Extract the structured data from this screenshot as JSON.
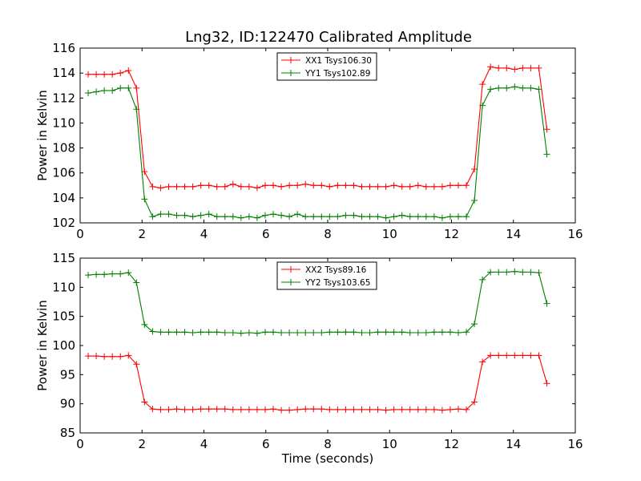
{
  "figure_title": "Lng32, ID:122470 Calibrated Amplitude",
  "colors": {
    "red": "#ff0000",
    "green": "#007f00",
    "axis": "#000000",
    "background": "#ffffff"
  },
  "chart_data": [
    {
      "type": "line",
      "title": "Lng32, ID:122470 Calibrated Amplitude",
      "xlabel": "",
      "ylabel": "Power in Kelvin",
      "xlim": [
        0,
        16
      ],
      "ylim": [
        102,
        116
      ],
      "xticks": [
        "0",
        "2",
        "4",
        "6",
        "8",
        "10",
        "12",
        "14",
        "16"
      ],
      "yticks": [
        "102",
        "104",
        "106",
        "108",
        "110",
        "112",
        "114",
        "116"
      ],
      "grid": false,
      "legend_position": "top-center",
      "x": [
        0.26,
        0.52,
        0.78,
        1.04,
        1.3,
        1.56,
        1.82,
        2.08,
        2.34,
        2.6,
        2.86,
        3.12,
        3.38,
        3.64,
        3.9,
        4.16,
        4.42,
        4.68,
        4.94,
        5.2,
        5.46,
        5.72,
        5.98,
        6.24,
        6.5,
        6.76,
        7.02,
        7.28,
        7.54,
        7.8,
        8.06,
        8.32,
        8.58,
        8.84,
        9.1,
        9.36,
        9.62,
        9.88,
        10.14,
        10.4,
        10.66,
        10.92,
        11.18,
        11.44,
        11.7,
        11.96,
        12.22,
        12.48,
        12.74,
        13.0,
        13.26,
        13.52,
        13.78,
        14.04,
        14.3,
        14.56,
        14.82,
        15.08
      ],
      "series": [
        {
          "name": "XX1 Tsys106.30",
          "color": "#ff0000",
          "values": [
            113.9,
            113.9,
            113.9,
            113.9,
            114.0,
            114.2,
            112.8,
            106.1,
            104.9,
            104.8,
            104.9,
            104.9,
            104.9,
            104.9,
            105.0,
            105.0,
            104.9,
            104.9,
            105.1,
            104.9,
            104.9,
            104.8,
            105.0,
            105.0,
            104.9,
            105.0,
            105.0,
            105.1,
            105.0,
            105.0,
            104.9,
            105.0,
            105.0,
            105.0,
            104.9,
            104.9,
            104.9,
            104.9,
            105.0,
            104.9,
            104.9,
            105.0,
            104.9,
            104.9,
            104.9,
            105.0,
            105.0,
            105.0,
            106.3,
            113.1,
            114.5,
            114.4,
            114.4,
            114.3,
            114.4,
            114.4,
            114.4,
            109.5
          ]
        },
        {
          "name": "YY1 Tsys102.89",
          "color": "#007f00",
          "values": [
            112.4,
            112.5,
            112.6,
            112.6,
            112.8,
            112.8,
            111.1,
            103.9,
            102.5,
            102.7,
            102.7,
            102.6,
            102.6,
            102.5,
            102.6,
            102.7,
            102.5,
            102.5,
            102.5,
            102.4,
            102.5,
            102.4,
            102.6,
            102.7,
            102.6,
            102.5,
            102.7,
            102.5,
            102.5,
            102.5,
            102.5,
            102.5,
            102.6,
            102.6,
            102.5,
            102.5,
            102.5,
            102.4,
            102.5,
            102.6,
            102.5,
            102.5,
            102.5,
            102.5,
            102.4,
            102.5,
            102.5,
            102.5,
            103.8,
            111.4,
            112.7,
            112.8,
            112.8,
            112.9,
            112.8,
            112.8,
            112.7,
            107.5
          ]
        }
      ]
    },
    {
      "type": "line",
      "title": "",
      "xlabel": "Time (seconds)",
      "ylabel": "Power in Kelvin",
      "xlim": [
        0,
        16
      ],
      "ylim": [
        85,
        115
      ],
      "xticks": [
        "0",
        "2",
        "4",
        "6",
        "8",
        "10",
        "12",
        "14",
        "16"
      ],
      "yticks": [
        "85",
        "90",
        "95",
        "100",
        "105",
        "110",
        "115"
      ],
      "grid": false,
      "legend_position": "top-center",
      "x": [
        0.26,
        0.52,
        0.78,
        1.04,
        1.3,
        1.56,
        1.82,
        2.08,
        2.34,
        2.6,
        2.86,
        3.12,
        3.38,
        3.64,
        3.9,
        4.16,
        4.42,
        4.68,
        4.94,
        5.2,
        5.46,
        5.72,
        5.98,
        6.24,
        6.5,
        6.76,
        7.02,
        7.28,
        7.54,
        7.8,
        8.06,
        8.32,
        8.58,
        8.84,
        9.1,
        9.36,
        9.62,
        9.88,
        10.14,
        10.4,
        10.66,
        10.92,
        11.18,
        11.44,
        11.7,
        11.96,
        12.22,
        12.48,
        12.74,
        13.0,
        13.26,
        13.52,
        13.78,
        14.04,
        14.3,
        14.56,
        14.82,
        15.08
      ],
      "series": [
        {
          "name": "XX2 Tsys89.16",
          "color": "#ff0000",
          "values": [
            98.2,
            98.2,
            98.1,
            98.1,
            98.1,
            98.3,
            96.8,
            90.3,
            89.1,
            89.0,
            89.0,
            89.1,
            89.0,
            89.0,
            89.1,
            89.1,
            89.1,
            89.1,
            89.0,
            89.0,
            89.0,
            89.0,
            89.0,
            89.1,
            88.9,
            88.9,
            89.0,
            89.1,
            89.1,
            89.1,
            89.0,
            89.0,
            89.0,
            89.0,
            89.0,
            89.0,
            89.0,
            88.9,
            89.0,
            89.0,
            89.0,
            89.0,
            89.0,
            89.0,
            88.9,
            89.0,
            89.1,
            89.0,
            90.3,
            97.2,
            98.3,
            98.3,
            98.3,
            98.3,
            98.3,
            98.3,
            98.3,
            93.5
          ]
        },
        {
          "name": "YY2 Tsys103.65",
          "color": "#007f00",
          "values": [
            112.1,
            112.2,
            112.2,
            112.3,
            112.3,
            112.5,
            110.8,
            103.6,
            102.4,
            102.3,
            102.3,
            102.3,
            102.3,
            102.2,
            102.3,
            102.3,
            102.3,
            102.2,
            102.2,
            102.1,
            102.2,
            102.1,
            102.3,
            102.3,
            102.2,
            102.2,
            102.2,
            102.2,
            102.2,
            102.2,
            102.3,
            102.3,
            102.3,
            102.3,
            102.2,
            102.2,
            102.3,
            102.3,
            102.3,
            102.3,
            102.2,
            102.2,
            102.2,
            102.3,
            102.3,
            102.3,
            102.2,
            102.3,
            103.7,
            111.3,
            112.6,
            112.6,
            112.6,
            112.7,
            112.6,
            112.6,
            112.5,
            107.2
          ]
        }
      ]
    }
  ]
}
